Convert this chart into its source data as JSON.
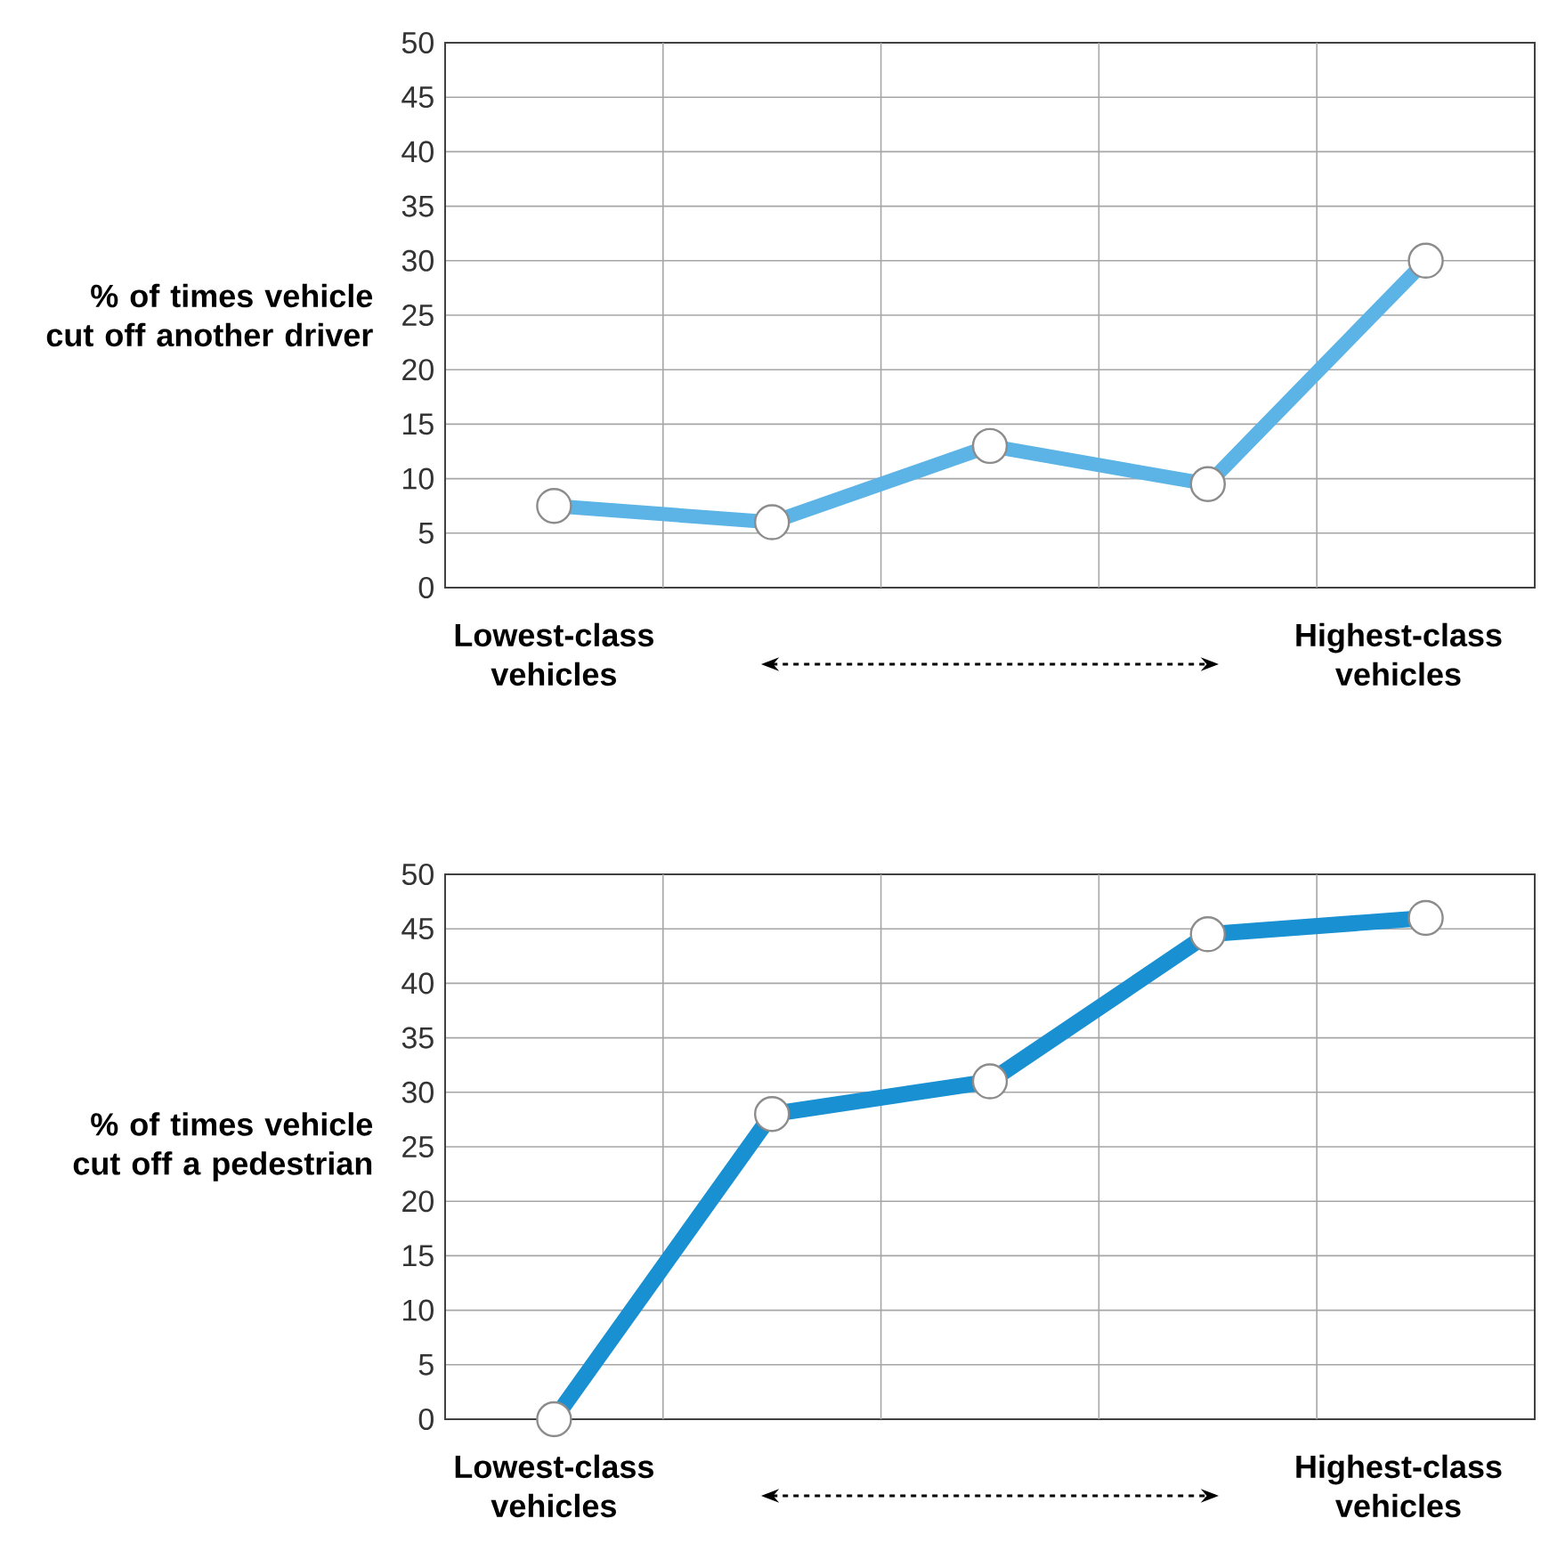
{
  "chart_data": [
    {
      "type": "line",
      "categories": [
        null,
        null,
        null,
        null,
        null
      ],
      "ylabel": "% of times vehicle cut off another driver",
      "ylim": [
        0,
        50
      ],
      "yticks": [
        0,
        5,
        10,
        15,
        20,
        25,
        30,
        35,
        40,
        45,
        50
      ],
      "grid": true,
      "marker": "circle",
      "annotations": [
        "Lowest-class vehicles",
        "Highest-class vehicles"
      ],
      "series": [
        {
          "color": "#5cb4e6",
          "values": [
            7.5,
            6,
            13,
            9.5,
            30
          ]
        }
      ]
    },
    {
      "type": "line",
      "categories": [
        null,
        null,
        null,
        null,
        null
      ],
      "ylabel": "% of times vehicle cut off a pedestrian",
      "ylim": [
        0,
        50
      ],
      "yticks": [
        0,
        5,
        10,
        15,
        20,
        25,
        30,
        35,
        40,
        45,
        50
      ],
      "grid": true,
      "marker": "circle",
      "annotations": [
        "Lowest-class vehicles",
        "Highest-class vehicles"
      ],
      "series": [
        {
          "color": "#1890d2",
          "values": [
            0,
            28,
            31,
            44.5,
            46
          ]
        }
      ]
    }
  ]
}
